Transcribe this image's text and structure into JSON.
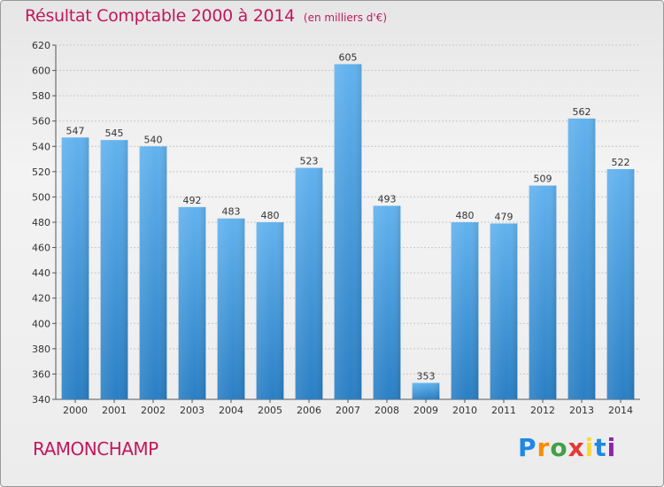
{
  "title": "Résultat Comptable 2000 à 2014",
  "subtitle": "(en milliers d'€)",
  "place": "RAMONCHAMP",
  "logo": {
    "letters": [
      "P",
      "r",
      "o",
      "x",
      "i",
      "t",
      "i"
    ],
    "colors": [
      "#1e88e5",
      "#fb8c00",
      "#43a047",
      "#e53935",
      "#fdd835",
      "#1e88e5",
      "#8e24aa"
    ]
  },
  "colors": {
    "bar_light": "#62b2ee",
    "bar_dark": "#2a7fc4",
    "title": "#c2185b"
  },
  "chart_data": {
    "type": "bar",
    "categories": [
      "2000",
      "2001",
      "2002",
      "2003",
      "2004",
      "2005",
      "2006",
      "2007",
      "2008",
      "2009",
      "2010",
      "2011",
      "2012",
      "2013",
      "2014"
    ],
    "values": [
      547,
      545,
      540,
      492,
      483,
      480,
      523,
      605,
      493,
      353,
      480,
      479,
      509,
      562,
      522
    ],
    "data_labels": [
      "547",
      "545",
      "540",
      "492",
      "483",
      "480",
      "523",
      "605",
      "493",
      "353",
      "480",
      "479",
      "509",
      "562",
      "522"
    ],
    "ylim": [
      340,
      620
    ],
    "yticks": [
      340,
      360,
      380,
      400,
      420,
      440,
      460,
      480,
      500,
      520,
      540,
      560,
      580,
      600,
      620
    ],
    "grid": true
  }
}
